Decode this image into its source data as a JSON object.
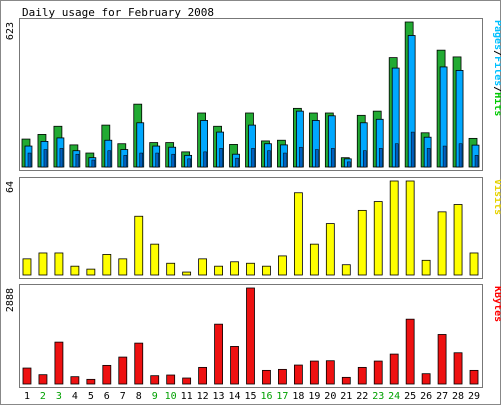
{
  "chart_data": {
    "type": "bar",
    "title": "Daily usage for February 2008",
    "categories": [
      "1",
      "2",
      "3",
      "4",
      "5",
      "6",
      "7",
      "8",
      "9",
      "10",
      "11",
      "12",
      "13",
      "14",
      "15",
      "16",
      "17",
      "18",
      "19",
      "20",
      "21",
      "22",
      "23",
      "24",
      "25",
      "26",
      "27",
      "28",
      "29"
    ],
    "weekend_days": [
      "2",
      "3",
      "9",
      "10",
      "16",
      "17",
      "23",
      "24"
    ],
    "panels": [
      {
        "name": "hits-files-pages",
        "max_label": "623",
        "ylim": [
          0,
          623
        ],
        "legend": [
          "Pages",
          "/",
          "Files",
          "/",
          "Hits"
        ],
        "legend_colors": [
          "#00c0ff",
          "#000000",
          "#00c0ff",
          "#000000",
          "#00c800"
        ],
        "series": [
          {
            "name": "Hits",
            "color": "#22aa33",
            "values": [
              120,
              140,
              175,
              95,
              60,
              180,
              100,
              270,
              105,
              105,
              65,
              232,
              175,
              97,
              232,
              112,
              115,
              252,
              232,
              232,
              40,
              222,
              240,
              470,
              623,
              147,
              502,
              473,
              123
            ]
          },
          {
            "name": "Files",
            "color": "#00a8ff",
            "values": [
              90,
              110,
              125,
              70,
              40,
              115,
              75,
              190,
              90,
              85,
              50,
              200,
              150,
              55,
              180,
              100,
              95,
              240,
              200,
              220,
              35,
              190,
              205,
              425,
              565,
              128,
              430,
              415,
              94
            ]
          },
          {
            "name": "Pages",
            "color": "#0060c0",
            "values": [
              60,
              75,
              80,
              55,
              30,
              70,
              50,
              60,
              60,
              55,
              35,
              65,
              80,
              38,
              80,
              70,
              60,
              85,
              75,
              80,
              22,
              70,
              80,
              100,
              150,
              80,
              90,
              100,
              50
            ]
          }
        ]
      },
      {
        "name": "visits",
        "max_label": "64",
        "ylim": [
          0,
          64
        ],
        "legend": [
          "Visits"
        ],
        "legend_colors": [
          "#e6d200"
        ],
        "series": [
          {
            "name": "Visits",
            "color": "#ffff00",
            "values": [
              11,
              15,
              15,
              6,
              4,
              14,
              11,
              40,
              21,
              8,
              2,
              11,
              6,
              9,
              8,
              6,
              13,
              56,
              21,
              35,
              7,
              44,
              50,
              64,
              64,
              10,
              43,
              48,
              15
            ]
          }
        ]
      },
      {
        "name": "kbytes",
        "max_label": "2888",
        "ylim": [
          0,
          2888
        ],
        "legend": [
          "KBytes"
        ],
        "legend_colors": [
          "#ff0000"
        ],
        "series": [
          {
            "name": "KBytes",
            "color": "#ee1111",
            "values": [
              480,
              280,
              1260,
              220,
              140,
              560,
              810,
              1230,
              250,
              270,
              180,
              500,
              1800,
              1130,
              2888,
              410,
              440,
              570,
              690,
              700,
              200,
              500,
              690,
              900,
              1950,
              310,
              1490,
              940,
              410
            ]
          }
        ]
      }
    ]
  }
}
